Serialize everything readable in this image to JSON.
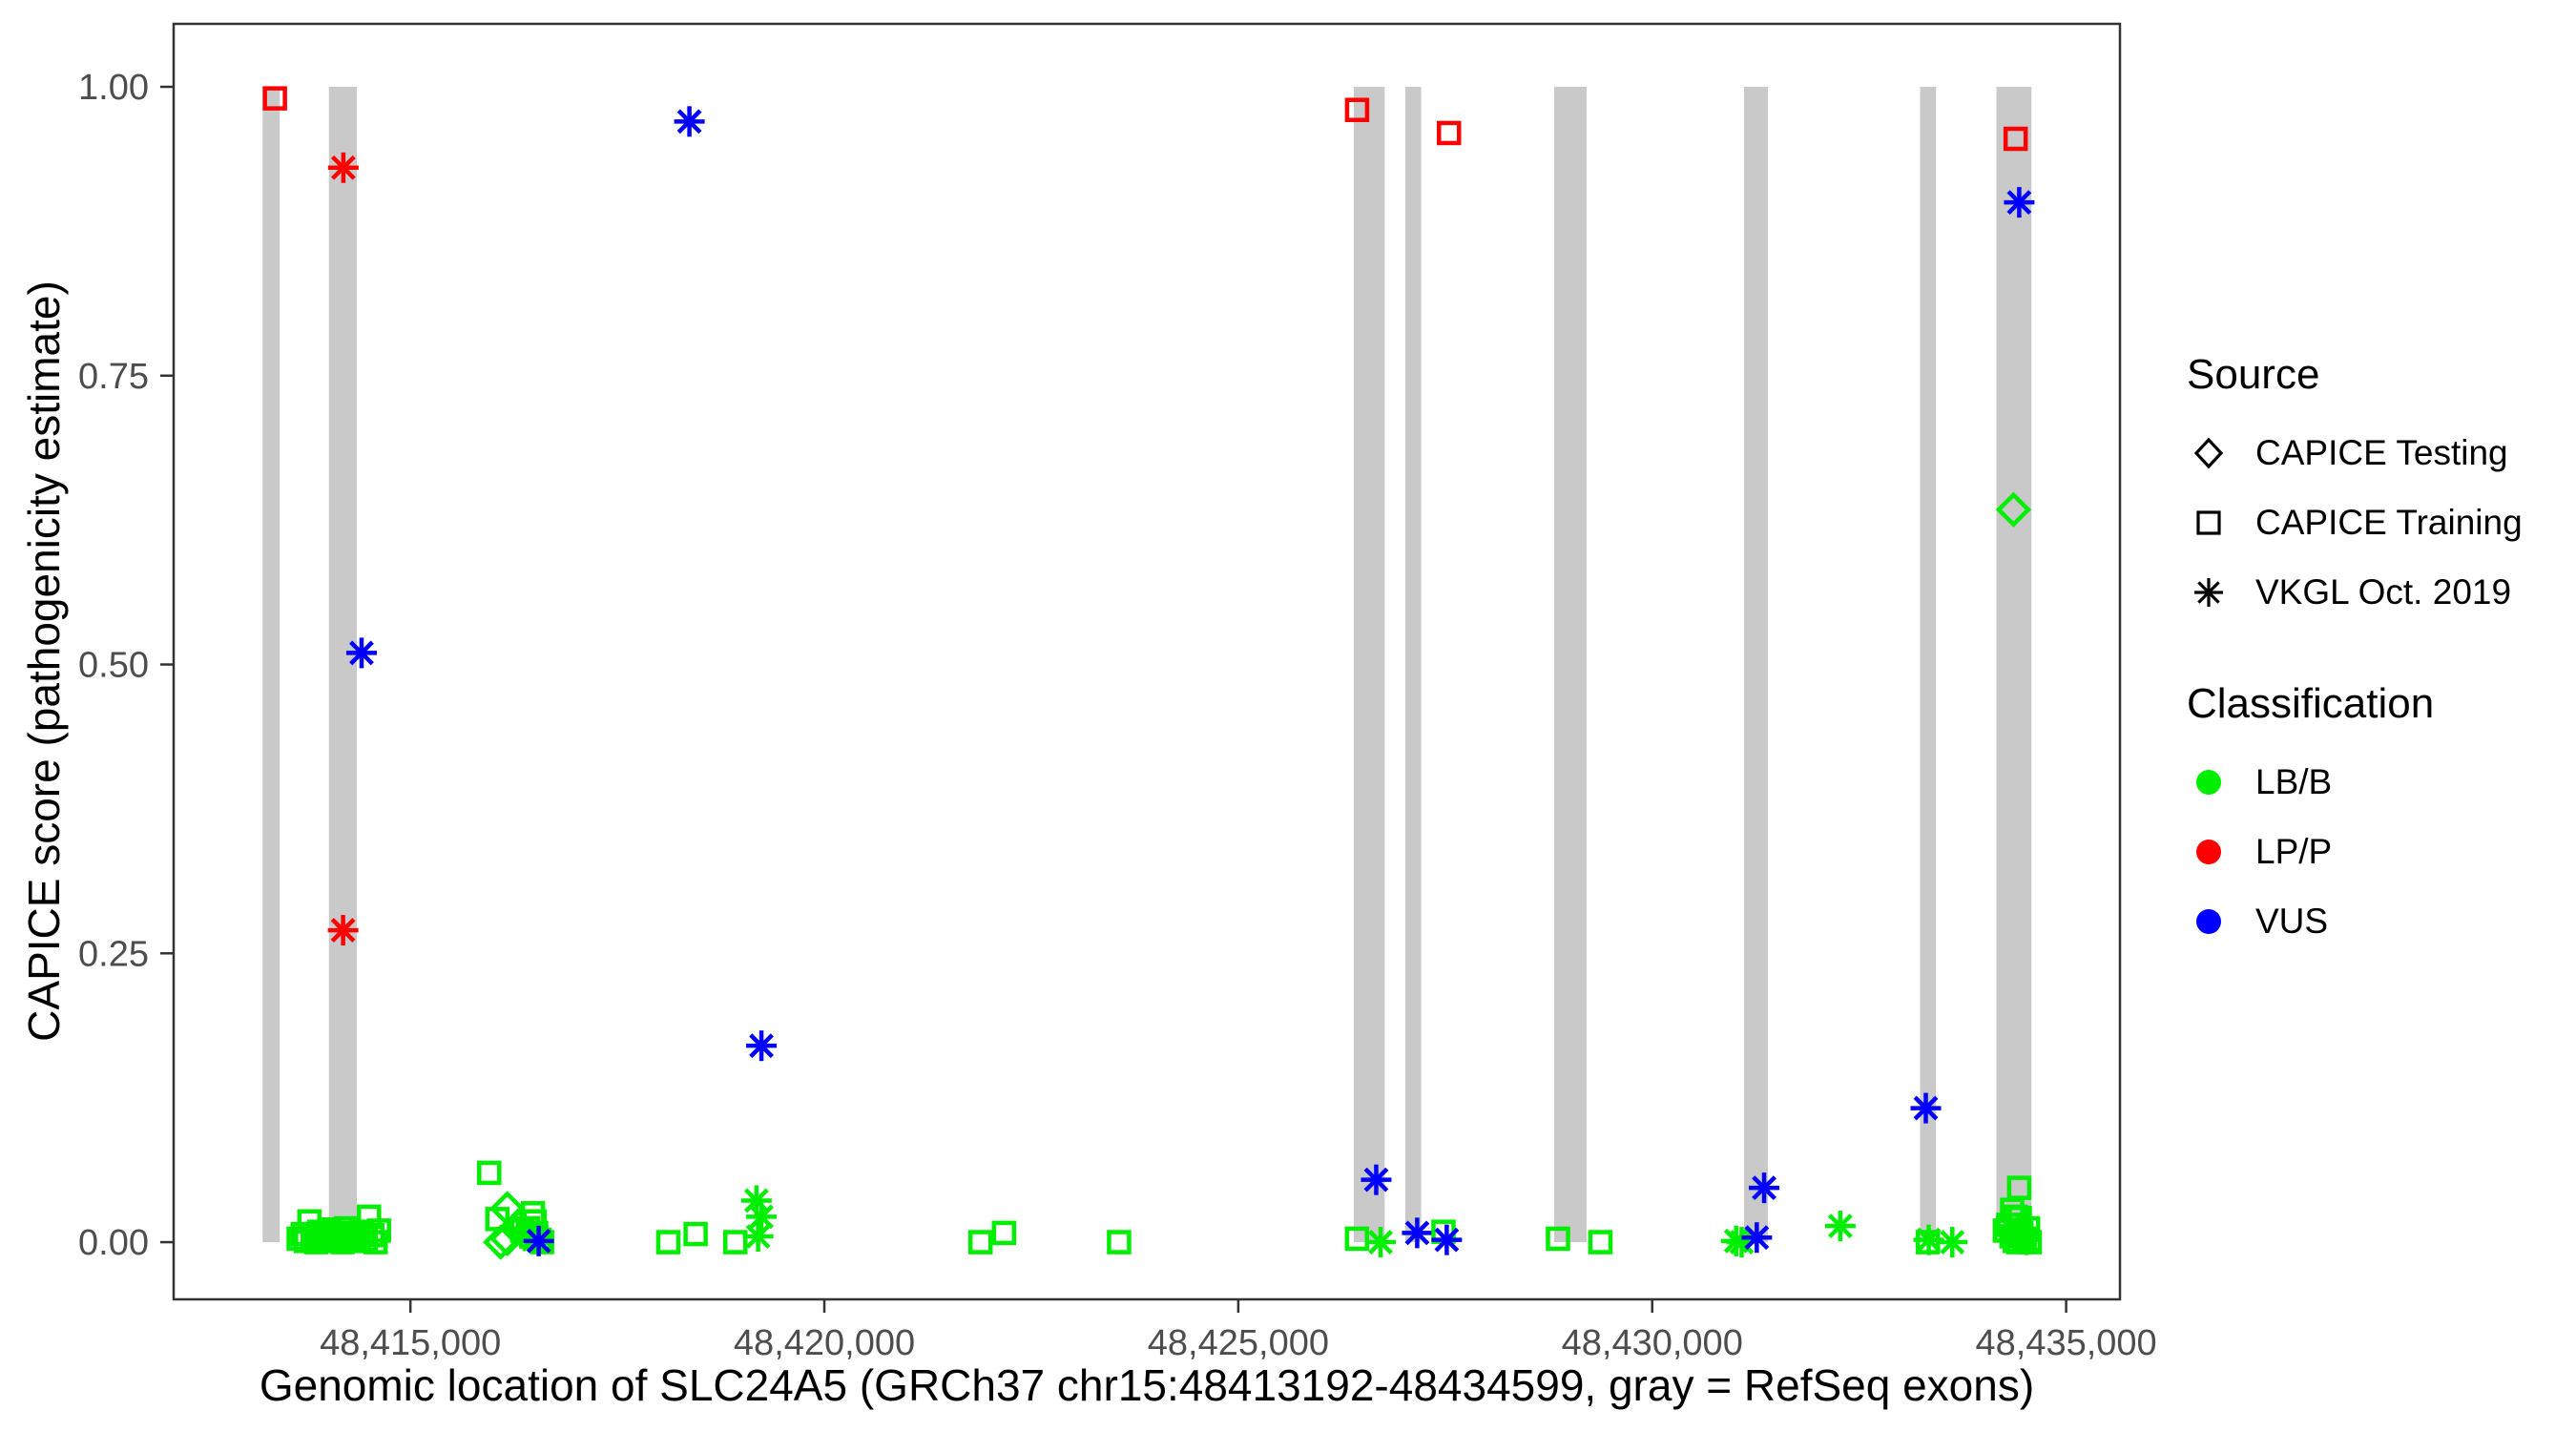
{
  "chart_data": {
    "type": "scatter",
    "xlabel": "Genomic location of SLC24A5 (GRCh37 chr15:48413192-48434599, gray = RefSeq exons)",
    "ylabel": "CAPICE score (pathogenicity estimate)",
    "xlim": [
      48412140,
      48435650
    ],
    "ylim": [
      -0.0495,
      1.0545
    ],
    "grid": false,
    "x_ticks": [
      {
        "value": 48415000,
        "label": "48,415,000"
      },
      {
        "value": 48420000,
        "label": "48,420,000"
      },
      {
        "value": 48425000,
        "label": "48,425,000"
      },
      {
        "value": 48430000,
        "label": "48,430,000"
      },
      {
        "value": 48435000,
        "label": "48,435,000"
      }
    ],
    "y_ticks": [
      {
        "value": 0.0,
        "label": "0.00"
      },
      {
        "value": 0.25,
        "label": "0.25"
      },
      {
        "value": 0.5,
        "label": "0.50"
      },
      {
        "value": 0.75,
        "label": "0.75"
      },
      {
        "value": 1.0,
        "label": "1.00"
      }
    ],
    "exons_note": "gray bars span score 0 to 1",
    "exons": [
      {
        "start": 48413215,
        "end": 48413422
      },
      {
        "start": 48414016,
        "end": 48414353
      },
      {
        "start": 48426395,
        "end": 48426768
      },
      {
        "start": 48427017,
        "end": 48427209
      },
      {
        "start": 48428815,
        "end": 48429207
      },
      {
        "start": 48431109,
        "end": 48431397
      },
      {
        "start": 48433236,
        "end": 48433428
      },
      {
        "start": 48434158,
        "end": 48434581
      }
    ],
    "points": [
      {
        "pos": 48413363,
        "score": 0.99,
        "cls": "LP/P",
        "src": "training"
      },
      {
        "pos": 48414190,
        "score": 0.93,
        "cls": "LP/P",
        "src": "vkgl"
      },
      {
        "pos": 48414187,
        "score": 0.27,
        "cls": "LP/P",
        "src": "vkgl"
      },
      {
        "pos": 48414410,
        "score": 0.51,
        "cls": "VUS",
        "src": "vkgl"
      },
      {
        "pos": 48418370,
        "score": 0.97,
        "cls": "VUS",
        "src": "vkgl"
      },
      {
        "pos": 48426435,
        "score": 0.98,
        "cls": "LP/P",
        "src": "training"
      },
      {
        "pos": 48427545,
        "score": 0.96,
        "cls": "LP/P",
        "src": "training"
      },
      {
        "pos": 48434390,
        "score": 0.955,
        "cls": "LP/P",
        "src": "training"
      },
      {
        "pos": 48434433,
        "score": 0.9,
        "cls": "VUS",
        "src": "vkgl"
      },
      {
        "pos": 48434364,
        "score": 0.634,
        "cls": "LB/B",
        "src": "testing"
      },
      {
        "pos": 48413650,
        "score": 0.003,
        "cls": "LB/B",
        "src": "training"
      },
      {
        "pos": 48413700,
        "score": 0.007,
        "cls": "LB/B",
        "src": "training"
      },
      {
        "pos": 48413740,
        "score": 0.001,
        "cls": "LB/B",
        "src": "training"
      },
      {
        "pos": 48413780,
        "score": 0.018,
        "cls": "LB/B",
        "src": "training"
      },
      {
        "pos": 48413820,
        "score": 0.005,
        "cls": "LB/B",
        "src": "training"
      },
      {
        "pos": 48413860,
        "score": 0.0,
        "cls": "LB/B",
        "src": "training"
      },
      {
        "pos": 48413900,
        "score": 0.009,
        "cls": "LB/B",
        "src": "training"
      },
      {
        "pos": 48413940,
        "score": 0.002,
        "cls": "LB/B",
        "src": "training"
      },
      {
        "pos": 48413980,
        "score": 0.006,
        "cls": "LB/B",
        "src": "training"
      },
      {
        "pos": 48414020,
        "score": 0.011,
        "cls": "LB/B",
        "src": "training"
      },
      {
        "pos": 48414060,
        "score": 0.001,
        "cls": "LB/B",
        "src": "training"
      },
      {
        "pos": 48414100,
        "score": 0.004,
        "cls": "LB/B",
        "src": "training"
      },
      {
        "pos": 48414140,
        "score": 0.008,
        "cls": "LB/B",
        "src": "training"
      },
      {
        "pos": 48414180,
        "score": 0.0,
        "cls": "LB/B",
        "src": "training"
      },
      {
        "pos": 48414220,
        "score": 0.012,
        "cls": "LB/B",
        "src": "training"
      },
      {
        "pos": 48414260,
        "score": 0.003,
        "cls": "LB/B",
        "src": "training"
      },
      {
        "pos": 48414300,
        "score": 0.007,
        "cls": "LB/B",
        "src": "training"
      },
      {
        "pos": 48414340,
        "score": 0.001,
        "cls": "LB/B",
        "src": "training"
      },
      {
        "pos": 48414380,
        "score": 0.005,
        "cls": "LB/B",
        "src": "training"
      },
      {
        "pos": 48414420,
        "score": 0.009,
        "cls": "LB/B",
        "src": "training"
      },
      {
        "pos": 48414460,
        "score": 0.002,
        "cls": "LB/B",
        "src": "training"
      },
      {
        "pos": 48414500,
        "score": 0.022,
        "cls": "LB/B",
        "src": "training"
      },
      {
        "pos": 48414540,
        "score": 0.006,
        "cls": "LB/B",
        "src": "training"
      },
      {
        "pos": 48414580,
        "score": 0.0,
        "cls": "LB/B",
        "src": "training"
      },
      {
        "pos": 48414620,
        "score": 0.01,
        "cls": "LB/B",
        "src": "training"
      },
      {
        "pos": 48415952,
        "score": 0.06,
        "cls": "LB/B",
        "src": "training"
      },
      {
        "pos": 48416050,
        "score": 0.02,
        "cls": "LB/B",
        "src": "training"
      },
      {
        "pos": 48416170,
        "score": 0.029,
        "cls": "LB/B",
        "src": "testing"
      },
      {
        "pos": 48416170,
        "score": 0.003,
        "cls": "LB/B",
        "src": "testing"
      },
      {
        "pos": 48416090,
        "score": 0.0,
        "cls": "LB/B",
        "src": "testing"
      },
      {
        "pos": 48416300,
        "score": 0.014,
        "cls": "LB/B",
        "src": "testing"
      },
      {
        "pos": 48416380,
        "score": 0.007,
        "cls": "LB/B",
        "src": "testing"
      },
      {
        "pos": 48416480,
        "score": 0.025,
        "cls": "LB/B",
        "src": "training"
      },
      {
        "pos": 48416500,
        "score": 0.018,
        "cls": "LB/B",
        "src": "training"
      },
      {
        "pos": 48416350,
        "score": 0.01,
        "cls": "LB/B",
        "src": "training"
      },
      {
        "pos": 48416420,
        "score": 0.012,
        "cls": "LB/B",
        "src": "training"
      },
      {
        "pos": 48416460,
        "score": 0.005,
        "cls": "LB/B",
        "src": "training"
      },
      {
        "pos": 48416520,
        "score": 0.008,
        "cls": "LB/B",
        "src": "training"
      },
      {
        "pos": 48416560,
        "score": 0.002,
        "cls": "LB/B",
        "src": "training"
      },
      {
        "pos": 48416590,
        "score": 0.0,
        "cls": "LB/B",
        "src": "training"
      },
      {
        "pos": 48416550,
        "score": 0.001,
        "cls": "VUS",
        "src": "vkgl"
      },
      {
        "pos": 48418115,
        "score": 0.0,
        "cls": "LB/B",
        "src": "training"
      },
      {
        "pos": 48418445,
        "score": 0.007,
        "cls": "LB/B",
        "src": "training"
      },
      {
        "pos": 48418925,
        "score": 0.0,
        "cls": "LB/B",
        "src": "training"
      },
      {
        "pos": 48419180,
        "score": 0.036,
        "cls": "LB/B",
        "src": "vkgl"
      },
      {
        "pos": 48419240,
        "score": 0.022,
        "cls": "LB/B",
        "src": "vkgl"
      },
      {
        "pos": 48419200,
        "score": 0.005,
        "cls": "LB/B",
        "src": "vkgl"
      },
      {
        "pos": 48419240,
        "score": 0.17,
        "cls": "VUS",
        "src": "vkgl"
      },
      {
        "pos": 48421886,
        "score": 0.0,
        "cls": "LB/B",
        "src": "training"
      },
      {
        "pos": 48422170,
        "score": 0.008,
        "cls": "LB/B",
        "src": "training"
      },
      {
        "pos": 48423560,
        "score": 0.0,
        "cls": "LB/B",
        "src": "training"
      },
      {
        "pos": 48426434,
        "score": 0.003,
        "cls": "LB/B",
        "src": "training"
      },
      {
        "pos": 48426719,
        "score": 0.0,
        "cls": "LB/B",
        "src": "vkgl"
      },
      {
        "pos": 48426666,
        "score": 0.054,
        "cls": "VUS",
        "src": "vkgl"
      },
      {
        "pos": 48427161,
        "score": 0.008,
        "cls": "VUS",
        "src": "vkgl"
      },
      {
        "pos": 48427479,
        "score": 0.009,
        "cls": "LB/B",
        "src": "training"
      },
      {
        "pos": 48427518,
        "score": 0.002,
        "cls": "VUS",
        "src": "vkgl"
      },
      {
        "pos": 48428862,
        "score": 0.003,
        "cls": "LB/B",
        "src": "training"
      },
      {
        "pos": 48429374,
        "score": 0.0,
        "cls": "LB/B",
        "src": "training"
      },
      {
        "pos": 48431014,
        "score": 0.001,
        "cls": "LB/B",
        "src": "vkgl"
      },
      {
        "pos": 48431080,
        "score": 0.0,
        "cls": "LB/B",
        "src": "vkgl"
      },
      {
        "pos": 48431263,
        "score": 0.004,
        "cls": "VUS",
        "src": "vkgl"
      },
      {
        "pos": 48431352,
        "score": 0.047,
        "cls": "VUS",
        "src": "vkgl"
      },
      {
        "pos": 48432272,
        "score": 0.014,
        "cls": "LB/B",
        "src": "vkgl"
      },
      {
        "pos": 48433305,
        "score": 0.116,
        "cls": "VUS",
        "src": "vkgl"
      },
      {
        "pos": 48433330,
        "score": 0.0,
        "cls": "LB/B",
        "src": "training"
      },
      {
        "pos": 48433340,
        "score": 0.002,
        "cls": "LB/B",
        "src": "vkgl"
      },
      {
        "pos": 48433625,
        "score": 0.0,
        "cls": "LB/B",
        "src": "vkgl"
      },
      {
        "pos": 48434433,
        "score": 0.047,
        "cls": "LB/B",
        "src": "training"
      },
      {
        "pos": 48434348,
        "score": 0.028,
        "cls": "LB/B",
        "src": "training"
      },
      {
        "pos": 48434390,
        "score": 0.022,
        "cls": "LB/B",
        "src": "training"
      },
      {
        "pos": 48434440,
        "score": 0.021,
        "cls": "LB/B",
        "src": "training"
      },
      {
        "pos": 48434260,
        "score": 0.01,
        "cls": "LB/B",
        "src": "training"
      },
      {
        "pos": 48434300,
        "score": 0.015,
        "cls": "LB/B",
        "src": "training"
      },
      {
        "pos": 48434340,
        "score": 0.005,
        "cls": "LB/B",
        "src": "training"
      },
      {
        "pos": 48434380,
        "score": 0.001,
        "cls": "LB/B",
        "src": "training"
      },
      {
        "pos": 48434420,
        "score": 0.0,
        "cls": "LB/B",
        "src": "training"
      },
      {
        "pos": 48434460,
        "score": 0.008,
        "cls": "LB/B",
        "src": "training"
      },
      {
        "pos": 48434500,
        "score": 0.003,
        "cls": "LB/B",
        "src": "training"
      },
      {
        "pos": 48434540,
        "score": 0.012,
        "cls": "LB/B",
        "src": "training"
      },
      {
        "pos": 48434560,
        "score": 0.0,
        "cls": "LB/B",
        "src": "training"
      },
      {
        "pos": 48434520,
        "score": 0.002,
        "cls": "LB/B",
        "src": "vkgl"
      }
    ]
  },
  "colors": {
    "LB/B": "#00EE00",
    "LP/P": "#FF0000",
    "VUS": "#0000FF",
    "exon_gray": "#C9C9C9",
    "axis": "#333333",
    "tick_label": "#4D4D4D"
  },
  "legend": {
    "source": {
      "title": "Source",
      "items": [
        {
          "label": "CAPICE Testing",
          "symbol": "diamond"
        },
        {
          "label": "CAPICE Training",
          "symbol": "square"
        },
        {
          "label": "VKGL Oct. 2019",
          "symbol": "asterisk"
        }
      ]
    },
    "classification": {
      "title": "Classification",
      "items": [
        {
          "label": "LB/B",
          "color": "#00EE00"
        },
        {
          "label": "LP/P",
          "color": "#FF0000"
        },
        {
          "label": "VUS",
          "color": "#0000FF"
        }
      ]
    }
  }
}
